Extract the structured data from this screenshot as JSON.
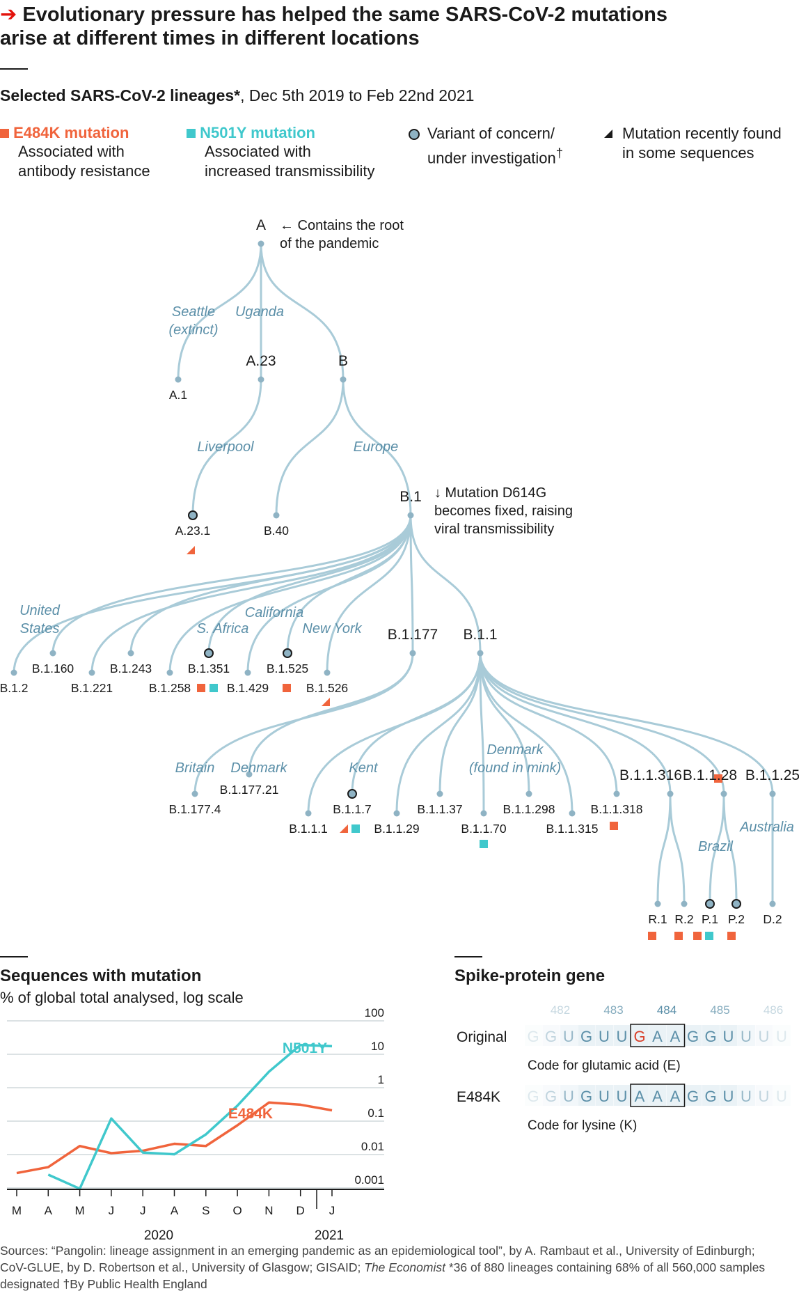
{
  "header": {
    "title_line1": "Evolutionary pressure has helped the same SARS-CoV-2 mutations",
    "title_line2": "arise at different times in different locations",
    "arrow": "➔",
    "subtitle_bold": "Selected SARS-CoV-2 lineages*",
    "subtitle_rest": ", Dec 5th 2019 to Feb 22nd 2021"
  },
  "legend": {
    "e484k": {
      "title": "E484K mutation",
      "line1": "Associated with",
      "line2": "antibody resistance"
    },
    "n501y": {
      "title": "N501Y mutation",
      "line1": "Associated with",
      "line2": "increased transmissibility"
    },
    "voc": {
      "line1": "Variant of concern/",
      "line2": "under investigation",
      "dagger": "†"
    },
    "recent": {
      "line1": "Mutation recently found",
      "line2": "in some sequences"
    }
  },
  "colors": {
    "e484k": "#f0643c",
    "n501y": "#40c8cc",
    "tree": "#a9cbd8",
    "node": "#8fb3c4",
    "region": "#5b8fa8"
  },
  "tree": {
    "annotations": {
      "root_line1": "← Contains the root",
      "root_line2": "of the pandemic",
      "d614g_line1": "↓ Mutation D614G",
      "d614g_line2": "becomes fixed, raising",
      "d614g_line3": "viral transmissibility"
    },
    "regions": {
      "seattle1": "Seattle",
      "seattle2": "(extinct)",
      "uganda": "Uganda",
      "liverpool": "Liverpool",
      "europe": "Europe",
      "us1": "United",
      "us2": "States",
      "safrica": "S. Africa",
      "california": "California",
      "newyork": "New York",
      "britain": "Britain",
      "denmark": "Denmark",
      "kent": "Kent",
      "denmark_mink1": "Denmark",
      "denmark_mink2": "(found in mink)",
      "brazil": "Brazil",
      "australia": "Australia"
    },
    "lineages": {
      "A": "A",
      "A1": "A.1",
      "A23": "A.23",
      "A231": "A.23.1",
      "B": "B",
      "B40": "B.40",
      "B1": "B.1",
      "B12": "B.1.2",
      "B1160": "B.1.160",
      "B1221": "B.1.221",
      "B1243": "B.1.243",
      "B1258": "B.1.258",
      "B1351": "B.1.351",
      "B1429": "B.1.429",
      "B1525": "B.1.525",
      "B1526": "B.1.526",
      "B1177": "B.1.177",
      "B11": "B.1.1",
      "B11774": "B.1.177.4",
      "B117721": "B.1.177.21",
      "B111": "B.1.1.1",
      "B117": "B.1.1.7",
      "B1129": "B.1.1.29",
      "B1137": "B.1.1.37",
      "B1170": "B.1.1.70",
      "B11298": "B.1.1.298",
      "B11315": "B.1.1.315",
      "B11318": "B.1.1.318",
      "B11316": "B.1.1.316",
      "B1128": "B.1.1.28",
      "B1125": "B.1.1.25",
      "R1": "R.1",
      "R2": "R.2",
      "P1": "P.1",
      "P2": "P.2",
      "D2": "D.2"
    }
  },
  "chart_data": {
    "type": "line",
    "title": "Sequences with mutation",
    "subtitle": "% of global total analysed, log scale",
    "scale": "log",
    "ylim": [
      0.001,
      100
    ],
    "yticks": [
      "100",
      "10",
      "1",
      "0.1",
      "0.01",
      "0.001"
    ],
    "x": [
      "M",
      "A",
      "M",
      "J",
      "J",
      "A",
      "S",
      "O",
      "N",
      "D",
      "J"
    ],
    "x_years": [
      "2020",
      "2021"
    ],
    "series": [
      {
        "name": "E484K",
        "color": "#f0643c",
        "values": [
          0.0028,
          0.0042,
          0.018,
          0.011,
          0.013,
          0.021,
          0.018,
          0.075,
          0.36,
          0.31,
          0.21
        ]
      },
      {
        "name": "N501Y",
        "color": "#40c8cc",
        "values": [
          null,
          0.0025,
          0.00095,
          0.12,
          0.0115,
          0.0102,
          0.04,
          0.29,
          3.0,
          19,
          17.5
        ]
      }
    ]
  },
  "spike": {
    "title": "Spike-protein gene",
    "positions": [
      "482",
      "483",
      "484",
      "485",
      "486"
    ],
    "original_label": "Original",
    "original_seq": [
      "G",
      "G",
      "U",
      "G",
      "U",
      "U",
      "G",
      "A",
      "A",
      "G",
      "G",
      "U",
      "U",
      "U",
      "U"
    ],
    "original_caption": "Code for glutamic acid (E)",
    "mutant_label": "E484K",
    "mutant_seq": [
      "G",
      "G",
      "U",
      "G",
      "U",
      "U",
      "A",
      "A",
      "A",
      "G",
      "G",
      "U",
      "U",
      "U",
      "U"
    ],
    "mutant_caption": "Code for lysine (K)"
  },
  "sources": {
    "line1": "Sources: “Pangolin: lineage assignment in an emerging pandemic as an epidemiological tool”, by A. Rambaut et al., University of Edinburgh;",
    "line2a": "CoV-GLUE, by D. Robertson et al., University of Glasgow; GISAID; ",
    "line2b": "The Economist",
    "line2c": "  *36 of 880 lineages containing 68% of all 560,000 samples",
    "line3": "designated  †By Public Health England"
  }
}
